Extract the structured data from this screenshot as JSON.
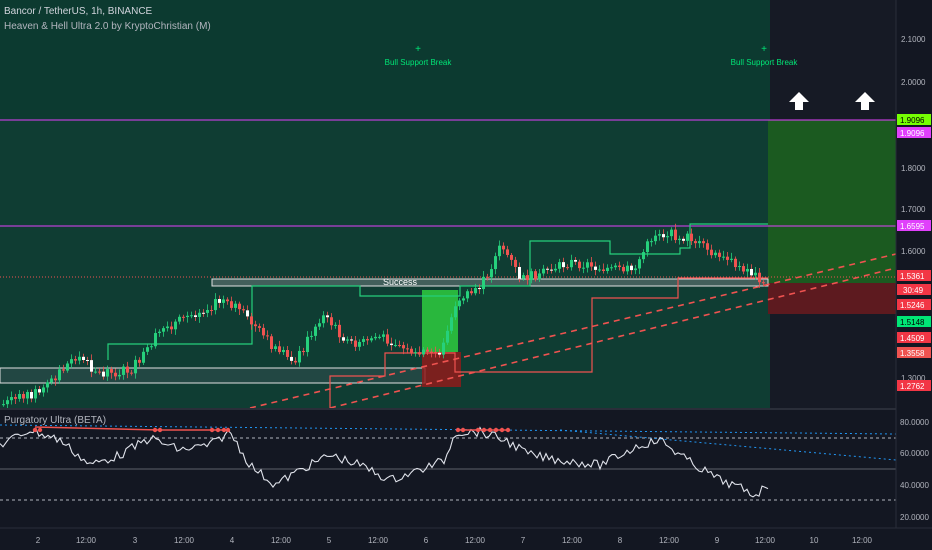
{
  "header": {
    "symbol_line": "Bancor / TetherUS, 1h, BINANCE",
    "indicator_line": "Heaven & Hell Ultra 2.0 by KryptoChristian (M)"
  },
  "annotations": {
    "bull_break_1": "Bull Support Break",
    "bull_break_2": "Bull Support Break",
    "plus_1": "+",
    "plus_2": "+",
    "success": "Success"
  },
  "price_axis": {
    "ticks": [
      "2.1000",
      "2.0000",
      "1.8000",
      "1.7000",
      "1.6000",
      "1.3000"
    ],
    "tags": [
      {
        "label": "1.9096",
        "bg": "#76ff03",
        "fg": "#000000"
      },
      {
        "label": "1.9096",
        "bg": "#e040fb",
        "fg": "#ffffff"
      },
      {
        "label": "1.6595",
        "bg": "#e040fb",
        "fg": "#ffffff"
      },
      {
        "label": "1.5361",
        "bg": "#f23645",
        "fg": "#ffffff"
      },
      {
        "label": "30:49",
        "bg": "#f23645",
        "fg": "#ffffff"
      },
      {
        "label": "1.5246",
        "bg": "#f23645",
        "fg": "#ffffff"
      },
      {
        "label": "1.5148",
        "bg": "#00e676",
        "fg": "#000000"
      },
      {
        "label": "1.4509",
        "bg": "#f23645",
        "fg": "#ffffff"
      },
      {
        "label": "1.3558",
        "bg": "#ef5350",
        "fg": "#ffffff"
      },
      {
        "label": "1.2762",
        "bg": "#f23645",
        "fg": "#ffffff"
      }
    ]
  },
  "indicator": {
    "title": "Purgatory Ultra (BETA)",
    "ticks": [
      "80.0000",
      "60.0000",
      "40.0000",
      "20.0000"
    ]
  },
  "time_axis": {
    "labels": [
      "2",
      "12:00",
      "3",
      "12:00",
      "4",
      "12:00",
      "5",
      "12:00",
      "6",
      "12:00",
      "7",
      "12:00",
      "8",
      "12:00",
      "9",
      "12:00",
      "10",
      "12:00"
    ]
  },
  "colors": {
    "background": "#131722",
    "heaven_zone": "#0f3d33",
    "green_box": "#1b5e20",
    "red_box": "#5d1a1f",
    "magenta_line": "#e040fb",
    "bull_text": "#00e676",
    "up_candle": "#26a69a",
    "down_candle": "#ef5350",
    "dashed_red": "#ef5350"
  },
  "icons": [
    "up-arrow-icon",
    "up-arrow-icon"
  ]
}
